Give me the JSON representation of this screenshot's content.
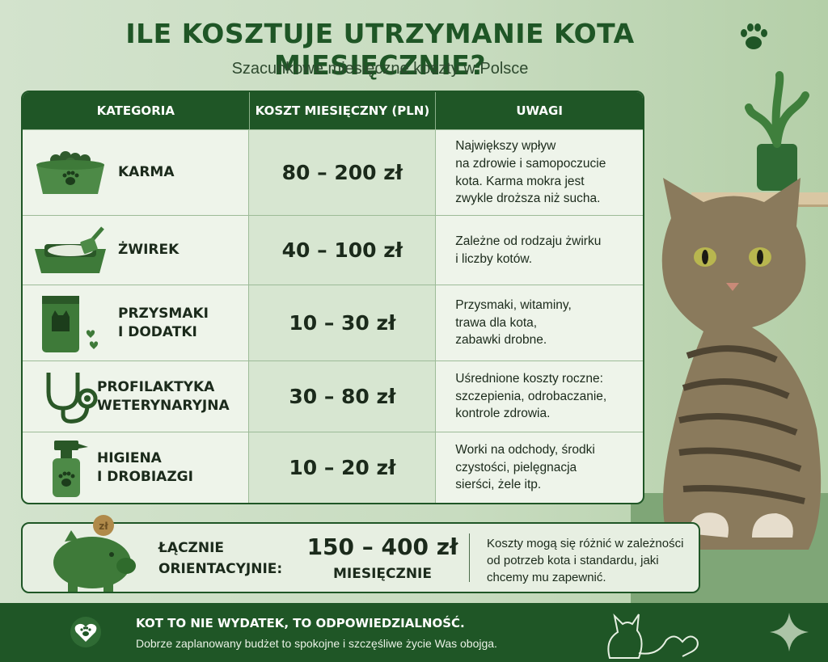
{
  "title": "ILE KOSZTUJE UTRZYMANIE KOTA MIESIĘCZNIE?",
  "subtitle": "Szacunkowe miesięczne koszty w Polsce",
  "table": {
    "headers": [
      "KATEGORIA",
      "KOSZT MIESIĘCZNY (PLN)",
      "UWAGI"
    ],
    "rows": [
      {
        "icon": "food-bowl-icon",
        "category": "KARMA",
        "cost": "80 – 200 zł",
        "note": "Największy wpływ\nna zdrowie i samopoczucie\nkota. Karma mokra jest\nzwykle droższa niż sucha."
      },
      {
        "icon": "litter-box-icon",
        "category": "ŻWIREK",
        "cost": "40 – 100 zł",
        "note": "Zależne od rodzaju żwirku\ni liczby kotów."
      },
      {
        "icon": "treat-bag-icon",
        "category": "PRZYSMAKI\nI DODATKI",
        "cost": "10 – 30 zł",
        "note": "Przysmaki, witaminy,\ntrawa dla kota,\nzabawki drobne."
      },
      {
        "icon": "stethoscope-icon",
        "category": "PROFILAKTYKA\nWETERYNARYJNA",
        "cost": "30 – 80 zł",
        "note": "Uśrednione koszty roczne:\nszczepienia, odrobaczanie,\nkontrole zdrowia."
      },
      {
        "icon": "spray-bottle-icon",
        "category": "HIGIENA\nI DROBIAZGI",
        "cost": "10 – 20 zł",
        "note": "Worki na odchody, środki\nczystości, pielęgnacja\nsierści, żele itp."
      }
    ]
  },
  "summary": {
    "coin": "zł",
    "label": "ŁĄCZNIE\nORIENTACYJNIE:",
    "value": "150 – 400 zł",
    "unit": "MIESIĘCZNIE",
    "note": "Koszty mogą się różnić w zależności\nod potrzeb kota i standardu, jaki\nchcemy mu zapewnić."
  },
  "footer": {
    "title": "KOT TO NIE WYDATEK, TO ODPOWIEDZIALNOŚĆ.",
    "subtitle": "Dobrze zaplanowany budżet to spokojne i szczęśliwe życie Was obojga."
  },
  "colors": {
    "primary": "#1f5626",
    "cost_column": "#d7e6d1",
    "background": "#cfe0c8"
  }
}
